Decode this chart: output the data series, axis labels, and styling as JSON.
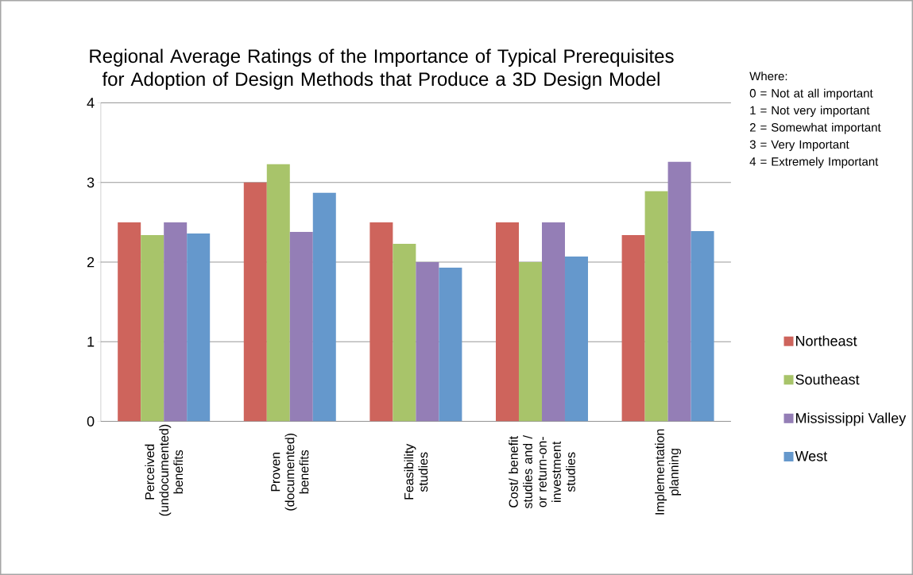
{
  "chart_data": {
    "type": "bar",
    "title": "Regional Average Ratings of the Importance of Typical Prerequisites for Adoption of Design Methods that Produce a 3D Design Model",
    "categories": [
      "Perceived (undocumented) benefits",
      "Proven (documented) benefits",
      "Feasibility studies",
      "Cost/ benefit studies and / or return-on-investment studies",
      "Implementation planning"
    ],
    "series": [
      {
        "name": "Northeast",
        "color": "#ce645c",
        "values": [
          2.5,
          3.0,
          2.5,
          2.5,
          2.34
        ]
      },
      {
        "name": "Southeast",
        "color": "#a8c46a",
        "values": [
          2.34,
          3.23,
          2.23,
          2.0,
          2.89
        ]
      },
      {
        "name": "Mississippi Valley",
        "color": "#947eb6",
        "values": [
          2.5,
          2.38,
          2.0,
          2.5,
          3.26
        ]
      },
      {
        "name": "West",
        "color": "#6598cc",
        "values": [
          2.36,
          2.87,
          1.93,
          2.07,
          2.39
        ]
      }
    ],
    "ylim": [
      0,
      4
    ],
    "yticks": [
      0,
      1,
      2,
      3,
      4
    ],
    "grid": "y",
    "legend": "right",
    "annotations": [
      "Where:",
      "0 = Not at all important",
      "1 = Not very important",
      "2 = Somewhat important",
      "3 = Very Important",
      "4 = Extremely Important"
    ]
  }
}
